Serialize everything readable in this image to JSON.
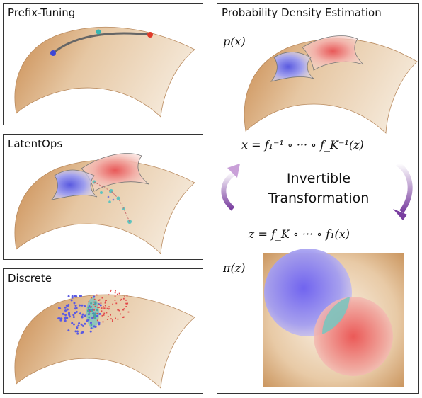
{
  "panels": {
    "prefix": {
      "title": "Prefix-Tuning"
    },
    "latent": {
      "title": "LatentOps"
    },
    "discrete": {
      "title": "Discrete"
    },
    "density": {
      "title": "Probability Density Estimation",
      "px_label": "p(x)",
      "inverse_formula": "x = f₁⁻¹ ∘ ··· ∘ f_K⁻¹(z)",
      "transform_line1": "Invertible",
      "transform_line2": "Transformation",
      "forward_formula": "z = f_K ∘ ··· ∘ f₁(x)",
      "pz_label": "π(z)"
    }
  },
  "colors": {
    "manifold_dark": "#c98a4e",
    "manifold_light": "#f3e6d2",
    "blue_region": "#6f6fe0",
    "red_region": "#e86a6a",
    "teal": "#5fc4bf",
    "arrow_purple": "#7a3fa0"
  }
}
